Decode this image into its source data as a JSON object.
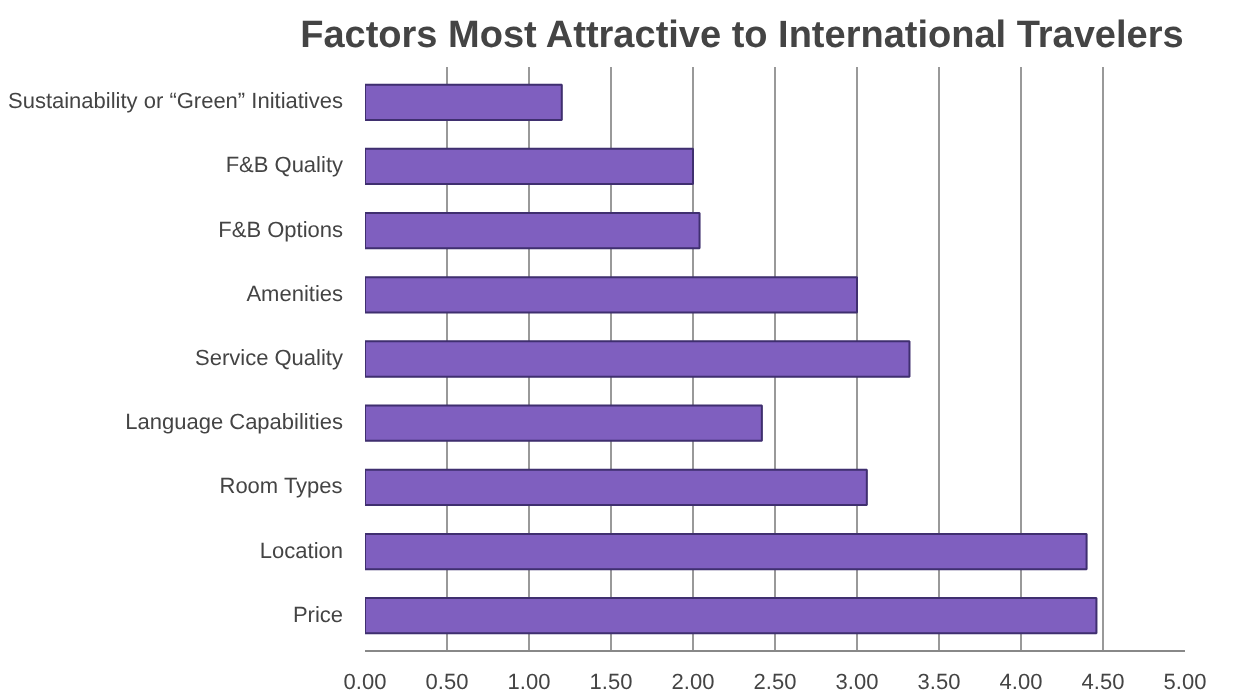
{
  "chart_data": {
    "type": "bar",
    "orientation": "horizontal",
    "title": "Factors Most Attractive to International Travelers",
    "categories": [
      "Sustainability or “Green” Initiatives",
      "F&B Quality",
      "F&B Options",
      "Amenities",
      "Service Quality",
      "Language Capabilities",
      "Room Types",
      "Location",
      "Price"
    ],
    "values": [
      1.2,
      2.0,
      2.04,
      3.0,
      3.32,
      2.42,
      3.06,
      4.4,
      4.46
    ],
    "color": "#7f5fbf",
    "xlim": [
      0,
      5
    ],
    "xticks": [
      {
        "value": 0,
        "label": "0.00"
      },
      {
        "value": 0.5,
        "label": "0.50"
      },
      {
        "value": 1,
        "label": "1.00"
      },
      {
        "value": 1.5,
        "label": "1.50"
      },
      {
        "value": 2,
        "label": "2.00"
      },
      {
        "value": 2.5,
        "label": "2.50"
      },
      {
        "value": 3,
        "label": "3.00"
      },
      {
        "value": 3.5,
        "label": "3.50"
      },
      {
        "value": 4,
        "label": "4.00"
      },
      {
        "value": 4.5,
        "label": "4.50"
      },
      {
        "value": 5,
        "label": "5.00"
      }
    ],
    "grid": "x"
  }
}
